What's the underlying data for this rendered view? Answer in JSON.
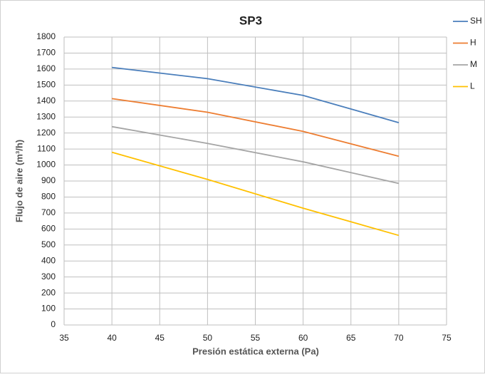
{
  "chart_data": {
    "type": "line",
    "title": "SP3",
    "x_label": "Presión estática externa (Pa)",
    "y_label": "Flujo de aire (m³/h)",
    "x": [
      40,
      50,
      60,
      70
    ],
    "series": [
      {
        "name": "SH",
        "color": "#4a7ebb",
        "values": [
          1610,
          1540,
          1435,
          1265
        ]
      },
      {
        "name": "H",
        "color": "#ed7d31",
        "values": [
          1415,
          1330,
          1210,
          1055
        ]
      },
      {
        "name": "M",
        "color": "#a5a5a5",
        "values": [
          1240,
          1135,
          1020,
          885
        ]
      },
      {
        "name": "L",
        "color": "#ffc000",
        "values": [
          1080,
          910,
          730,
          560
        ]
      }
    ],
    "xlim": [
      35,
      75
    ],
    "xticks": [
      35,
      40,
      45,
      50,
      55,
      60,
      65,
      70,
      75
    ],
    "ylim": [
      0,
      1800
    ],
    "yticks": [
      0,
      100,
      200,
      300,
      400,
      500,
      600,
      700,
      800,
      900,
      1000,
      1100,
      1200,
      1300,
      1400,
      1500,
      1600,
      1700,
      1800
    ],
    "grid": true,
    "legend": "right"
  }
}
